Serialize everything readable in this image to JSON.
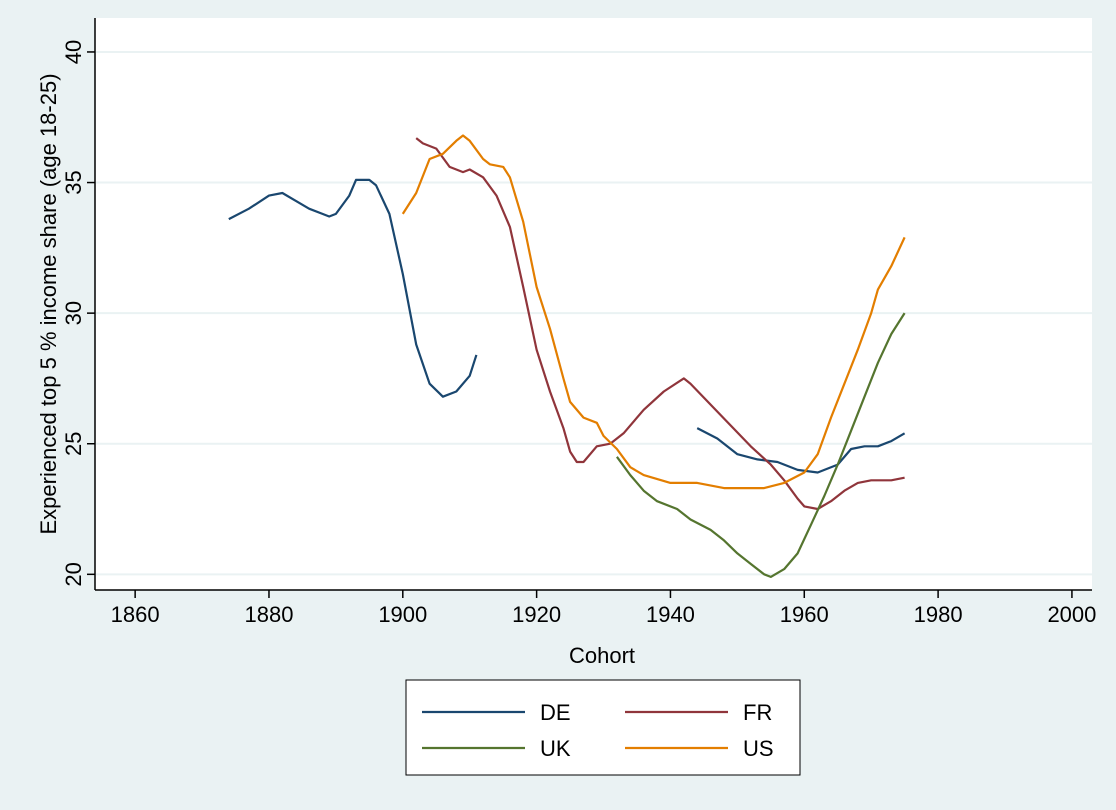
{
  "chart_data": {
    "type": "line",
    "xlabel": "Cohort",
    "ylabel": "Experienced top 5 % income share (age 18-25)",
    "xlim": [
      1854,
      2003
    ],
    "ylim": [
      19.4,
      41.3
    ],
    "xticks": [
      1860,
      1880,
      1900,
      1920,
      1940,
      1960,
      1980,
      2000
    ],
    "yticks": [
      20,
      25,
      30,
      35,
      40
    ],
    "grid": true,
    "legend": "bottom",
    "series": [
      {
        "name": "DE",
        "color": "#1a476f",
        "x": [
          1874,
          1877,
          1880,
          1882,
          1884,
          1886,
          1888,
          1889,
          1890,
          1892,
          1893,
          1895,
          1896,
          1898,
          1900,
          1902,
          1904,
          1906,
          1908,
          1910,
          1911,
          1927,
          1944,
          1947,
          1950,
          1953,
          1956,
          1959,
          1962,
          1965,
          1967,
          1969,
          1971,
          1973,
          1975
        ],
        "values": [
          33.6,
          34.0,
          34.5,
          34.6,
          34.3,
          34.0,
          33.8,
          33.7,
          33.8,
          34.5,
          35.1,
          35.1,
          34.9,
          33.8,
          31.5,
          28.8,
          27.3,
          26.8,
          27.0,
          27.6,
          28.4,
          null,
          25.6,
          25.2,
          24.6,
          24.4,
          24.3,
          24.0,
          23.9,
          24.2,
          24.8,
          24.9,
          24.9,
          25.1,
          25.4
        ]
      },
      {
        "name": "FR",
        "color": "#90353b",
        "x": [
          1902,
          1903,
          1905,
          1907,
          1909,
          1910,
          1912,
          1914,
          1916,
          1918,
          1920,
          1922,
          1924,
          1925,
          1926,
          1927,
          1929,
          1931,
          1933,
          1936,
          1939,
          1942,
          1943,
          1946,
          1949,
          1952,
          1955,
          1957,
          1959,
          1960,
          1962,
          1964,
          1966,
          1968,
          1970,
          1973,
          1975
        ],
        "values": [
          36.7,
          36.5,
          36.3,
          35.6,
          35.4,
          35.5,
          35.2,
          34.5,
          33.3,
          31.0,
          28.6,
          27.0,
          25.6,
          24.7,
          24.3,
          24.3,
          24.9,
          25.0,
          25.4,
          26.3,
          27.0,
          27.5,
          27.3,
          26.5,
          25.7,
          24.9,
          24.2,
          23.6,
          22.9,
          22.6,
          22.5,
          22.8,
          23.2,
          23.5,
          23.6,
          23.6,
          23.7
        ]
      },
      {
        "name": "UK",
        "color": "#55752f",
        "x": [
          1932,
          1934,
          1936,
          1938,
          1941,
          1943,
          1946,
          1948,
          1950,
          1952,
          1954,
          1955,
          1957,
          1959,
          1961,
          1963,
          1965,
          1967,
          1969,
          1971,
          1973,
          1975
        ],
        "values": [
          24.5,
          23.8,
          23.2,
          22.8,
          22.5,
          22.1,
          21.7,
          21.3,
          20.8,
          20.4,
          20.0,
          19.9,
          20.2,
          20.8,
          21.9,
          23.0,
          24.2,
          25.5,
          26.8,
          28.1,
          29.2,
          30.0
        ]
      },
      {
        "name": "US",
        "color": "#e37e00",
        "x": [
          1900,
          1902,
          1904,
          1906,
          1908,
          1909,
          1910,
          1912,
          1913,
          1915,
          1916,
          1918,
          1920,
          1922,
          1924,
          1925,
          1927,
          1929,
          1930,
          1932,
          1934,
          1936,
          1940,
          1944,
          1948,
          1950,
          1954,
          1957,
          1960,
          1962,
          1964,
          1966,
          1968,
          1970,
          1971,
          1973,
          1975
        ],
        "values": [
          33.8,
          34.6,
          35.9,
          36.1,
          36.6,
          36.8,
          36.6,
          35.9,
          35.7,
          35.6,
          35.2,
          33.5,
          31.0,
          29.4,
          27.5,
          26.6,
          26.0,
          25.8,
          25.3,
          24.8,
          24.1,
          23.8,
          23.5,
          23.5,
          23.3,
          23.3,
          23.3,
          23.5,
          23.9,
          24.6,
          26.0,
          27.3,
          28.6,
          30.0,
          30.9,
          31.8,
          32.9
        ]
      }
    ]
  }
}
